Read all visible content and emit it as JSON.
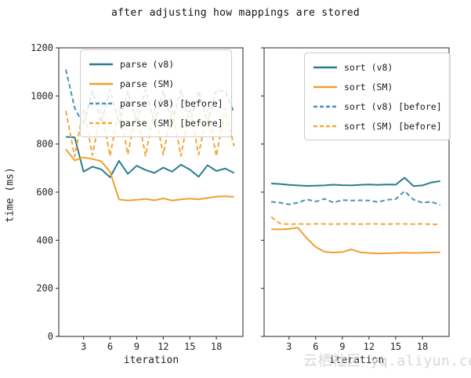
{
  "title": "after adjusting how mappings are stored",
  "ylabel": "time (ms)",
  "watermark": "云栖社区 yq.aliyun.com",
  "colors": {
    "teal": "#2a7d8f",
    "orange": "#efa02e",
    "blue_before": "#4e93b4",
    "orange_before": "#f3a73e",
    "frame": "#262626",
    "legend_border": "#cccccc"
  },
  "chart_data": [
    {
      "type": "line",
      "xlabel": "iteration",
      "xlim": [
        0.2,
        21
      ],
      "ylim": [
        0,
        1200
      ],
      "xticks": [
        3,
        6,
        9,
        12,
        15,
        18
      ],
      "yticks": [
        0,
        200,
        400,
        600,
        800,
        1000,
        1200
      ],
      "show_ytick_labels": true,
      "legend_position": "upper-left",
      "grid": false,
      "x": [
        1,
        2,
        3,
        4,
        5,
        6,
        7,
        8,
        9,
        10,
        11,
        12,
        13,
        14,
        15,
        16,
        17,
        18,
        19,
        20
      ],
      "series": [
        {
          "name": "parse (v8)",
          "style": "solid",
          "color_key": "teal",
          "values": [
            830,
            828,
            685,
            706,
            695,
            662,
            730,
            676,
            710,
            692,
            680,
            702,
            685,
            714,
            694,
            664,
            712,
            688,
            698,
            680
          ]
        },
        {
          "name": "parse (SM)",
          "style": "solid",
          "color_key": "orange",
          "values": [
            778,
            732,
            744,
            738,
            728,
            684,
            570,
            565,
            568,
            572,
            566,
            574,
            565,
            570,
            573,
            570,
            576,
            581,
            583,
            580
          ]
        },
        {
          "name": "parse (v8) [before]",
          "style": "dashed",
          "color_key": "blue_before",
          "values": [
            1110,
            950,
            880,
            1020,
            890,
            1025,
            885,
            1020,
            892,
            1026,
            886,
            1022,
            890,
            1026,
            885,
            1020,
            890,
            1024,
            1020,
            930
          ]
        },
        {
          "name": "parse (SM) [before]",
          "style": "dashed",
          "color_key": "orange_before",
          "values": [
            938,
            748,
            950,
            754,
            944,
            750,
            952,
            757,
            946,
            751,
            950,
            755,
            945,
            750,
            951,
            756,
            944,
            750,
            948,
            790
          ]
        }
      ]
    },
    {
      "type": "line",
      "xlabel": "iteration",
      "xlim": [
        0.2,
        21
      ],
      "ylim": [
        0,
        1200
      ],
      "xticks": [
        3,
        6,
        9,
        12,
        15,
        18
      ],
      "yticks": [
        0,
        200,
        400,
        600,
        800,
        1000,
        1200
      ],
      "show_ytick_labels": false,
      "legend_position": "upper-center",
      "grid": false,
      "x": [
        1,
        2,
        3,
        4,
        5,
        6,
        7,
        8,
        9,
        10,
        11,
        12,
        13,
        14,
        15,
        16,
        17,
        18,
        19,
        20
      ],
      "series": [
        {
          "name": "sort (v8)",
          "style": "solid",
          "color_key": "teal",
          "values": [
            636,
            634,
            630,
            628,
            626,
            627,
            628,
            631,
            629,
            628,
            630,
            632,
            630,
            632,
            631,
            660,
            625,
            628,
            640,
            646
          ]
        },
        {
          "name": "sort (SM)",
          "style": "solid",
          "color_key": "orange",
          "values": [
            446,
            445,
            447,
            452,
            408,
            372,
            352,
            349,
            351,
            362,
            350,
            347,
            345,
            346,
            347,
            348,
            347,
            348,
            349,
            350
          ]
        },
        {
          "name": "sort (v8) [before]",
          "style": "dashed",
          "color_key": "blue_before",
          "values": [
            560,
            556,
            549,
            556,
            570,
            561,
            572,
            557,
            567,
            565,
            566,
            565,
            559,
            568,
            571,
            604,
            569,
            556,
            560,
            547
          ]
        },
        {
          "name": "sort (SM) [before]",
          "style": "dashed",
          "color_key": "orange_before",
          "values": [
            497,
            469,
            467,
            468,
            467,
            468,
            468,
            467,
            468,
            468,
            467,
            468,
            468,
            467,
            468,
            468,
            467,
            468,
            467,
            465
          ]
        }
      ]
    }
  ]
}
